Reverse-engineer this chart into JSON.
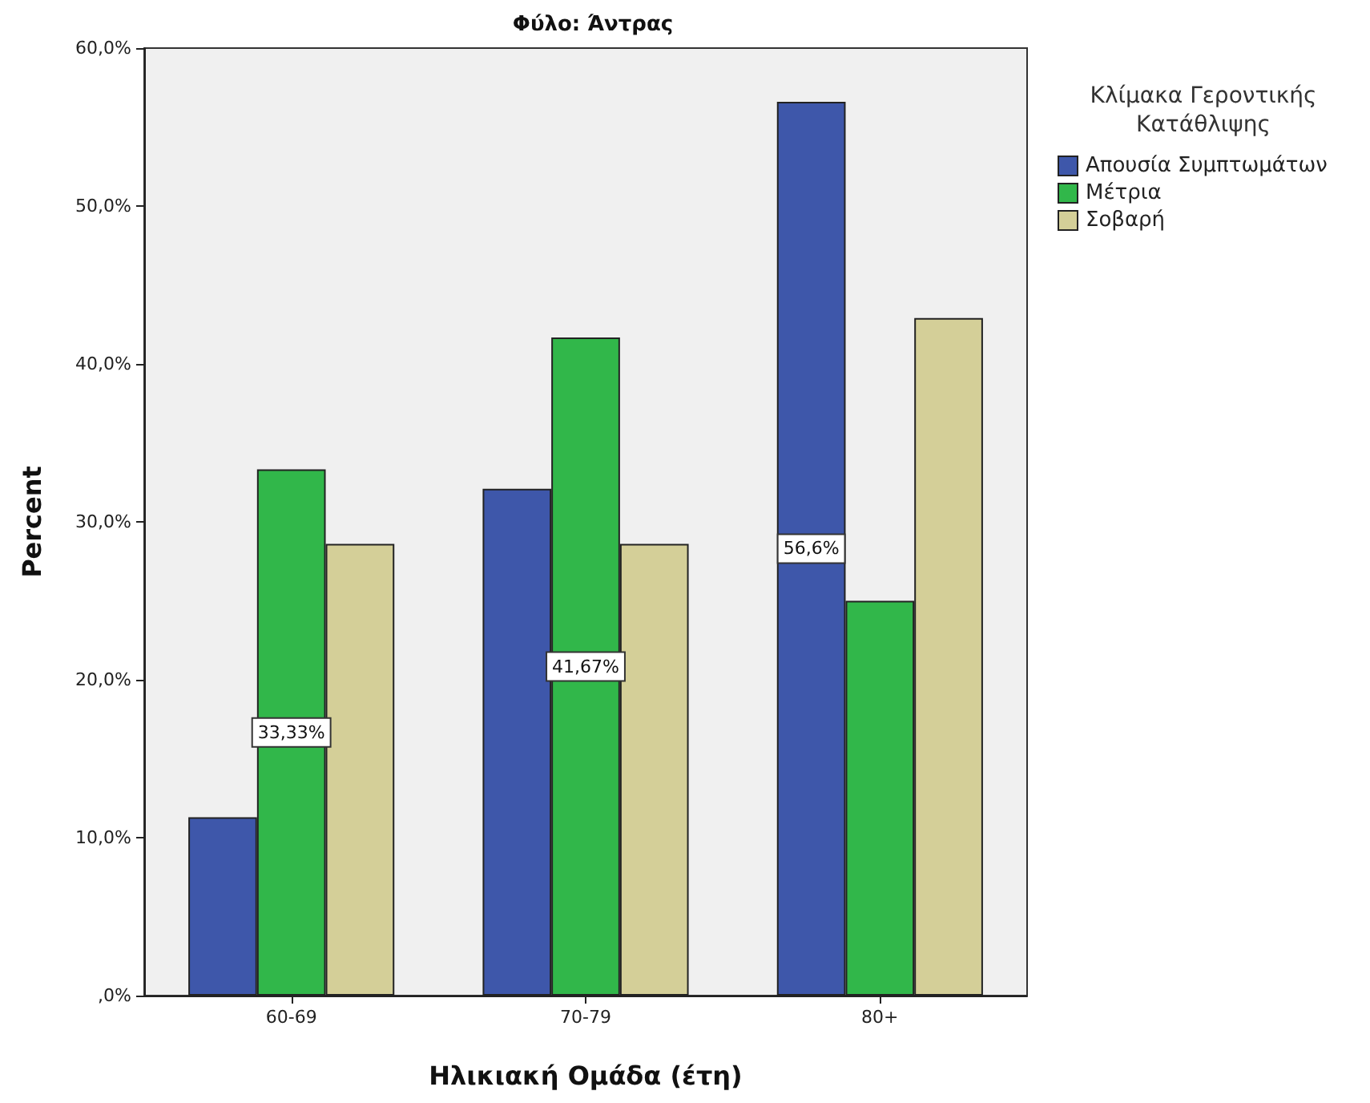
{
  "chart_data": {
    "type": "bar",
    "title": "Φύλο: Άντρας",
    "xlabel": "Ηλικιακή Ομάδα (έτη)",
    "ylabel": "Percent",
    "legend_title": "Κλίμακα Γεροντικής Κατάθλιψης",
    "categories": [
      "60-69",
      "70-79",
      "80+"
    ],
    "series": [
      {
        "name": "Απουσία Συμπτωμάτων",
        "color": "#3e57aa",
        "values": [
          11.3,
          32.1,
          56.6
        ],
        "value_labels": [
          null,
          null,
          "56,6%"
        ]
      },
      {
        "name": "Μέτρια",
        "color": "#31b74a",
        "values": [
          33.33,
          41.67,
          25.0
        ],
        "value_labels": [
          "33,33%",
          "41,67%",
          null
        ]
      },
      {
        "name": "Σοβαρή",
        "color": "#d4cf98",
        "values": [
          28.6,
          28.6,
          42.9
        ],
        "value_labels": [
          null,
          null,
          null
        ]
      }
    ],
    "ylim": [
      0,
      60
    ],
    "yticks": [
      {
        "value": 0,
        "label": ",0%"
      },
      {
        "value": 10,
        "label": "10,0%"
      },
      {
        "value": 20,
        "label": "20,0%"
      },
      {
        "value": 30,
        "label": "30,0%"
      },
      {
        "value": 40,
        "label": "40,0%"
      },
      {
        "value": 50,
        "label": "50,0%"
      },
      {
        "value": 60,
        "label": "60,0%"
      }
    ],
    "grid": false,
    "legend": "right"
  }
}
